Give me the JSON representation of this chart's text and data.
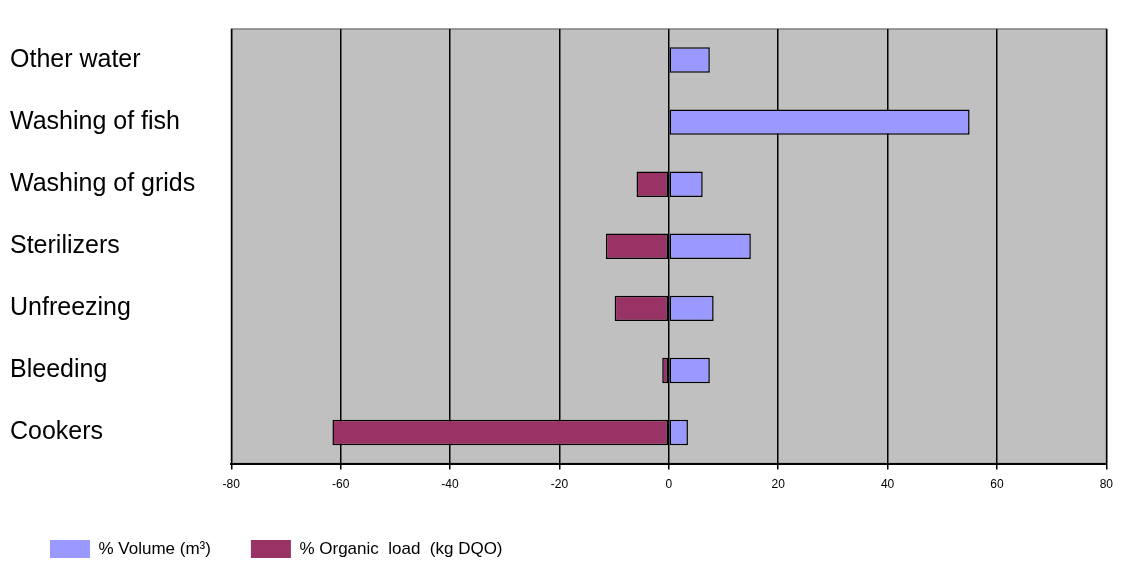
{
  "chart_data": {
    "type": "bar",
    "orientation": "horizontal",
    "stacked": true,
    "categories": [
      "Other water",
      "Washing of fish",
      "Washing of grids",
      "Sterilizers",
      "Unfreezing",
      "Bleeding",
      "Cookers"
    ],
    "series": [
      {
        "name": "% Volume (m³)",
        "color": "#9999ff",
        "values": [
          7.5,
          55,
          6.2,
          15,
          8.2,
          7.5,
          3.5
        ]
      },
      {
        "name": "% Organic  load  (kg DQO)",
        "color": "#993366",
        "values": [
          0,
          0,
          -5.9,
          -11.5,
          -9.9,
          -1.2,
          -61.5
        ]
      }
    ],
    "xlim": [
      -80,
      80
    ],
    "xticks": [
      -80,
      -60,
      -40,
      -20,
      0,
      20,
      40,
      60,
      80
    ],
    "grid": "x",
    "legend": "bottom"
  }
}
